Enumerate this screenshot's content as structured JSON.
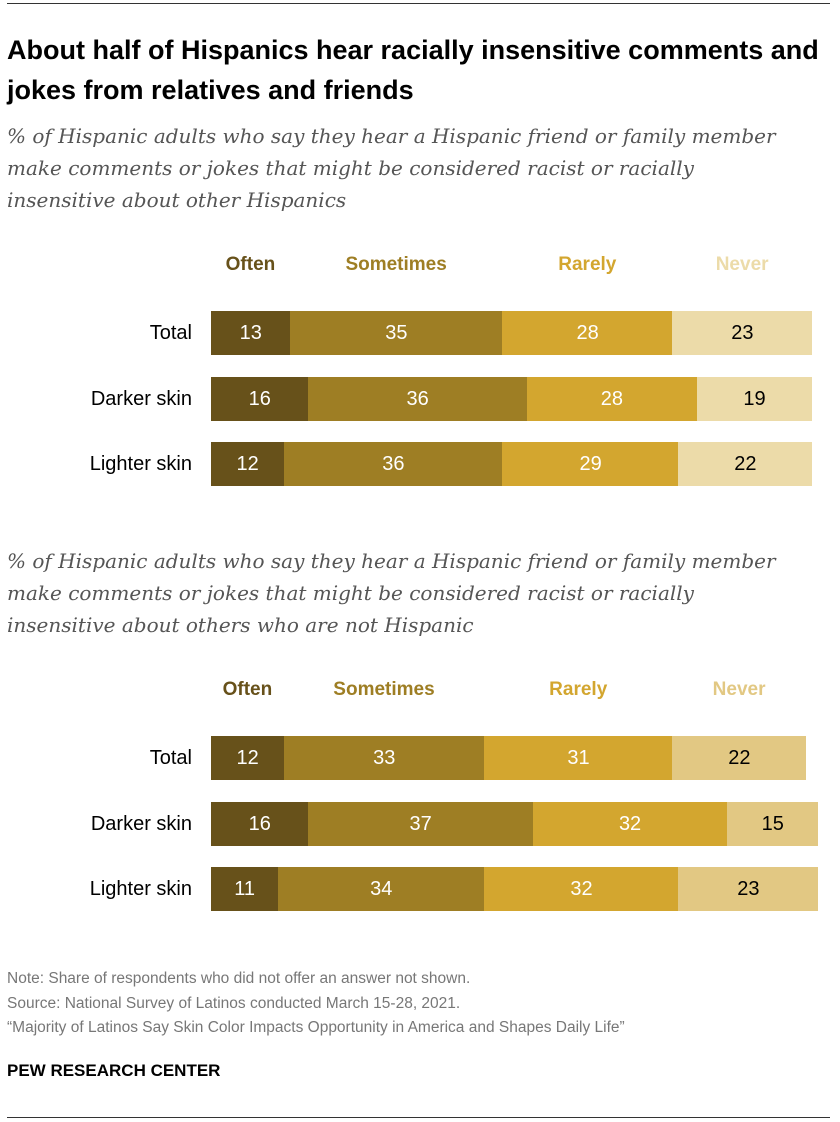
{
  "title": "About half of Hispanics hear racially insensitive comments and jokes from relatives and friends",
  "colors": {
    "Often": "#67511A",
    "Sometimes": "#9E7E24",
    "Rarely": "#D3A62F",
    "Never_1": "#ECDBA9",
    "Never_2": "#E2C883"
  },
  "chart_data": [
    {
      "type": "bar",
      "orientation": "horizontal-stacked",
      "subtitle": "% of Hispanic adults who say they hear a Hispanic friend or family member make comments or jokes that might be considered racist or racially insensitive about other Hispanics",
      "categories": [
        "Total",
        "Darker skin",
        "Lighter skin"
      ],
      "series": [
        {
          "name": "Often",
          "values": [
            13,
            16,
            12
          ]
        },
        {
          "name": "Sometimes",
          "values": [
            35,
            36,
            36
          ]
        },
        {
          "name": "Rarely",
          "values": [
            28,
            28,
            29
          ]
        },
        {
          "name": "Never",
          "values": [
            23,
            19,
            22
          ]
        }
      ],
      "legend": "top"
    },
    {
      "type": "bar",
      "orientation": "horizontal-stacked",
      "subtitle": "% of Hispanic adults who say they hear a Hispanic friend or family member make comments or jokes that might be considered racist or racially insensitive about others who are not Hispanic",
      "categories": [
        "Total",
        "Darker skin",
        "Lighter skin"
      ],
      "series": [
        {
          "name": "Often",
          "values": [
            12,
            16,
            11
          ]
        },
        {
          "name": "Sometimes",
          "values": [
            33,
            37,
            34
          ]
        },
        {
          "name": "Rarely",
          "values": [
            31,
            32,
            32
          ]
        },
        {
          "name": "Never",
          "values": [
            22,
            15,
            23
          ]
        }
      ],
      "legend": "top"
    }
  ],
  "notes": {
    "note": "Note: Share of respondents who did not offer an answer not shown.",
    "source": "Source: National Survey of Latinos conducted March 15-28, 2021.",
    "report": "“Majority of Latinos Say Skin Color Impacts Opportunity in America and Shapes Daily Life”"
  },
  "brand": "PEW RESEARCH CENTER"
}
